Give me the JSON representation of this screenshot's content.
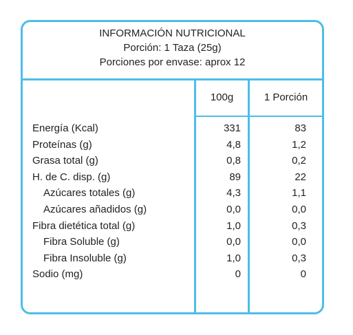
{
  "header": {
    "title": "INFORMACIÓN NUTRICIONAL",
    "portion": "Porción: 1 Taza (25g)",
    "servings": "Porciones por envase: aprox 12"
  },
  "columns": {
    "per100": "100g",
    "perPortion": "1 Porción"
  },
  "colors": {
    "accent": "#4dbde8"
  },
  "rows": [
    {
      "label": "Energía (Kcal)",
      "per100": "331",
      "perPortion": "83",
      "indent": false
    },
    {
      "label": "Proteínas (g)",
      "per100": "4,8",
      "perPortion": "1,2",
      "indent": false
    },
    {
      "label": "Grasa total (g)",
      "per100": "0,8",
      "perPortion": "0,2",
      "indent": false
    },
    {
      "label": "H. de C. disp. (g)",
      "per100": "89",
      "perPortion": "22",
      "indent": false
    },
    {
      "label": "Azúcares totales (g)",
      "per100": "4,3",
      "perPortion": "1,1",
      "indent": true
    },
    {
      "label": "Azúcares añadidos (g)",
      "per100": "0,0",
      "perPortion": "0,0",
      "indent": true
    },
    {
      "label": "Fibra dietética total (g)",
      "per100": "1,0",
      "perPortion": "0,3",
      "indent": false
    },
    {
      "label": "Fibra Soluble (g)",
      "per100": "0,0",
      "perPortion": "0,0",
      "indent": true
    },
    {
      "label": "Fibra Insoluble (g)",
      "per100": "1,0",
      "perPortion": "0,3",
      "indent": true
    },
    {
      "label": "Sodio (mg)",
      "per100": "0",
      "perPortion": "0",
      "indent": false
    }
  ]
}
